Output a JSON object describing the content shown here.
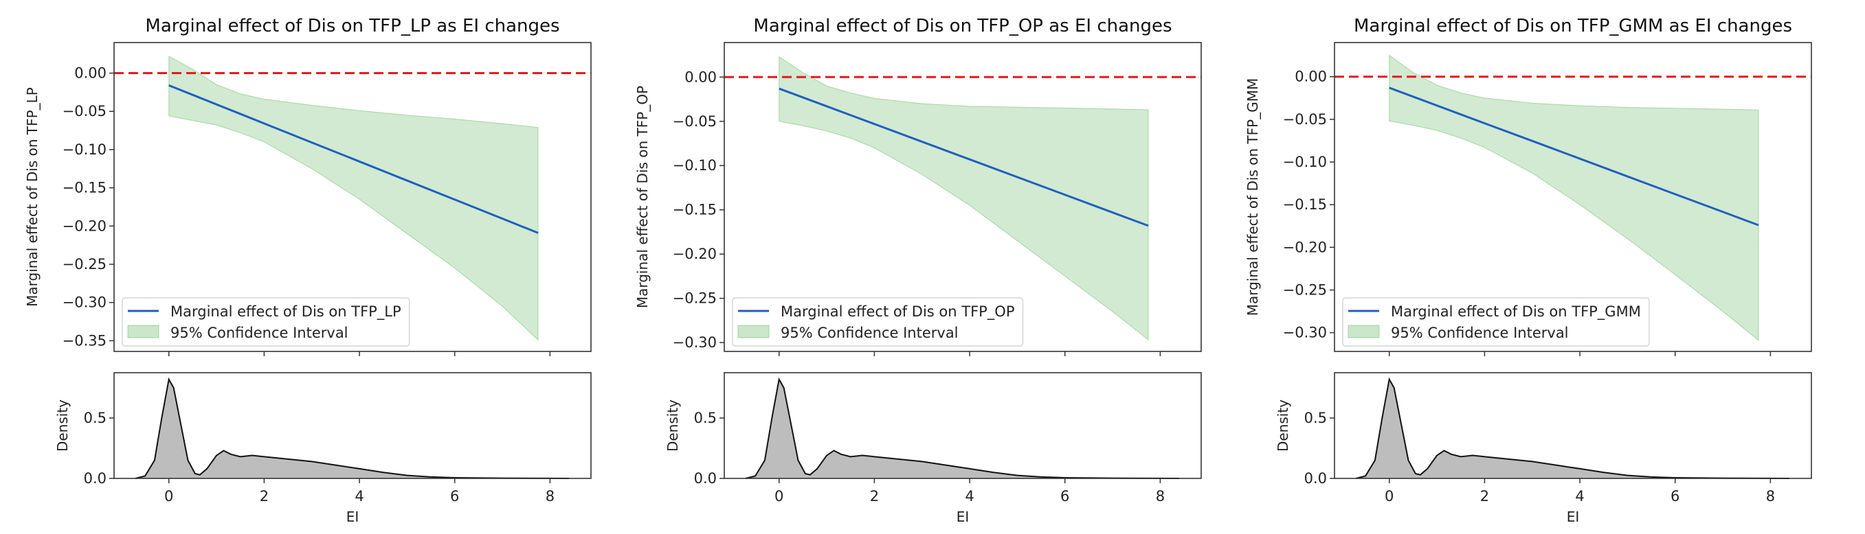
{
  "chart_data": [
    {
      "type": "line",
      "title": "Marginal effect of Dis on TFP_LP as EI changes",
      "xlabel": "EI",
      "ylabel": "Marginal effect of Dis on TFP_LP",
      "xlim": [
        -1.15,
        8.86
      ],
      "ylim": [
        -0.364,
        0.04
      ],
      "yticks": [
        "0.00",
        "−0.05",
        "−0.10",
        "−0.15",
        "−0.20",
        "−0.25",
        "−0.30",
        "−0.35"
      ],
      "ytick_values": [
        0,
        -0.05,
        -0.1,
        -0.15,
        -0.2,
        -0.25,
        -0.3,
        -0.35
      ],
      "reference_line": {
        "y": 0,
        "style": "dashed",
        "color": "#e41a1c"
      },
      "x": [
        0,
        0.5,
        1,
        1.5,
        2,
        3,
        4,
        5,
        6,
        7,
        7.75
      ],
      "series": [
        {
          "name": "Marginal effect of Dis on TFP_LP",
          "color": "#1f5fbf",
          "values": [
            -0.016,
            -0.0284,
            -0.0409,
            -0.0533,
            -0.0658,
            -0.0907,
            -0.1156,
            -0.1405,
            -0.1654,
            -0.1903,
            -0.209
          ]
        },
        {
          "name": "95% Confidence Interval",
          "type": "band",
          "color": "#2ca02c",
          "upper": [
            0.022,
            0.005,
            -0.015,
            -0.027,
            -0.034,
            -0.042,
            -0.049,
            -0.055,
            -0.06,
            -0.066,
            -0.071
          ],
          "lower": [
            -0.056,
            -0.062,
            -0.068,
            -0.078,
            -0.09,
            -0.125,
            -0.165,
            -0.21,
            -0.255,
            -0.305,
            -0.349
          ]
        }
      ],
      "legend": "lower-left",
      "density": {
        "ylabel": "Density",
        "ylim": [
          0,
          0.875
        ],
        "yticks": [
          "0.0",
          "0.5"
        ],
        "ytick_values": [
          0,
          0.5
        ],
        "xticks": [
          "0",
          "2",
          "4",
          "6",
          "8"
        ],
        "xtick_values": [
          0,
          2,
          4,
          6,
          8
        ],
        "x": [
          -0.7,
          -0.5,
          -0.3,
          -0.15,
          0,
          0.1,
          0.25,
          0.4,
          0.55,
          0.65,
          0.8,
          1.0,
          1.15,
          1.3,
          1.5,
          1.75,
          2,
          2.5,
          3,
          3.5,
          4,
          4.5,
          5,
          5.5,
          6,
          7,
          8.4
        ],
        "values": [
          0,
          0.02,
          0.15,
          0.5,
          0.82,
          0.75,
          0.45,
          0.15,
          0.04,
          0.03,
          0.08,
          0.19,
          0.23,
          0.2,
          0.18,
          0.19,
          0.18,
          0.16,
          0.14,
          0.11,
          0.08,
          0.05,
          0.025,
          0.012,
          0.006,
          0.002,
          0
        ]
      }
    },
    {
      "type": "line",
      "title": "Marginal effect of Dis on TFP_OP as EI changes",
      "xlabel": "EI",
      "ylabel": "Marginal effect of Dis on TFP_OP",
      "xlim": [
        -1.15,
        8.86
      ],
      "ylim": [
        -0.31,
        0.039
      ],
      "yticks": [
        "0.00",
        "−0.05",
        "−0.10",
        "−0.15",
        "−0.20",
        "−0.25",
        "−0.30"
      ],
      "ytick_values": [
        0,
        -0.05,
        -0.1,
        -0.15,
        -0.2,
        -0.25,
        -0.3
      ],
      "reference_line": {
        "y": 0,
        "style": "dashed",
        "color": "#e41a1c"
      },
      "x": [
        0,
        0.5,
        1,
        1.5,
        2,
        3,
        4,
        5,
        6,
        7,
        7.75
      ],
      "series": [
        {
          "name": "Marginal effect of Dis on TFP_OP",
          "color": "#1f5fbf",
          "values": [
            -0.013,
            -0.023,
            -0.033,
            -0.043,
            -0.053,
            -0.073,
            -0.093,
            -0.113,
            -0.133,
            -0.153,
            -0.168
          ]
        },
        {
          "name": "95% Confidence Interval",
          "type": "band",
          "color": "#2ca02c",
          "upper": [
            0.023,
            0.005,
            -0.01,
            -0.018,
            -0.024,
            -0.03,
            -0.033,
            -0.034,
            -0.035,
            -0.036,
            -0.037
          ],
          "lower": [
            -0.05,
            -0.055,
            -0.061,
            -0.069,
            -0.08,
            -0.11,
            -0.145,
            -0.185,
            -0.225,
            -0.265,
            -0.297
          ]
        }
      ],
      "legend": "lower-left",
      "density": {
        "ylabel": "Density",
        "ylim": [
          0,
          0.875
        ],
        "yticks": [
          "0.0",
          "0.5"
        ],
        "ytick_values": [
          0,
          0.5
        ],
        "xticks": [
          "0",
          "2",
          "4",
          "6",
          "8"
        ],
        "xtick_values": [
          0,
          2,
          4,
          6,
          8
        ],
        "x": [
          -0.7,
          -0.5,
          -0.3,
          -0.15,
          0,
          0.1,
          0.25,
          0.4,
          0.55,
          0.65,
          0.8,
          1.0,
          1.15,
          1.3,
          1.5,
          1.75,
          2,
          2.5,
          3,
          3.5,
          4,
          4.5,
          5,
          5.5,
          6,
          7,
          8.4
        ],
        "values": [
          0,
          0.02,
          0.15,
          0.5,
          0.82,
          0.75,
          0.45,
          0.15,
          0.04,
          0.03,
          0.08,
          0.19,
          0.23,
          0.2,
          0.18,
          0.19,
          0.18,
          0.16,
          0.14,
          0.11,
          0.08,
          0.05,
          0.025,
          0.012,
          0.006,
          0.002,
          0
        ]
      }
    },
    {
      "type": "line",
      "title": "Marginal effect of Dis on TFP_GMM as EI changes",
      "xlabel": "EI",
      "ylabel": "Marginal effect of Dis on TFP_GMM",
      "xlim": [
        -1.15,
        8.86
      ],
      "ylim": [
        -0.322,
        0.04
      ],
      "yticks": [
        "0.00",
        "−0.05",
        "−0.10",
        "−0.15",
        "−0.20",
        "−0.25",
        "−0.30"
      ],
      "ytick_values": [
        0,
        -0.05,
        -0.1,
        -0.15,
        -0.2,
        -0.25,
        -0.3
      ],
      "reference_line": {
        "y": 0,
        "style": "dashed",
        "color": "#e41a1c"
      },
      "x": [
        0,
        0.5,
        1,
        1.5,
        2,
        3,
        4,
        5,
        6,
        7,
        7.75
      ],
      "series": [
        {
          "name": "Marginal effect of Dis on TFP_GMM",
          "color": "#1f5fbf",
          "values": [
            -0.013,
            -0.0234,
            -0.0338,
            -0.0442,
            -0.0546,
            -0.0753,
            -0.0961,
            -0.1169,
            -0.1377,
            -0.1584,
            -0.174
          ]
        },
        {
          "name": "95% Confidence Interval",
          "type": "band",
          "color": "#2ca02c",
          "upper": [
            0.025,
            0.005,
            -0.01,
            -0.019,
            -0.025,
            -0.031,
            -0.034,
            -0.036,
            -0.037,
            -0.038,
            -0.039
          ],
          "lower": [
            -0.052,
            -0.057,
            -0.063,
            -0.072,
            -0.083,
            -0.113,
            -0.15,
            -0.19,
            -0.232,
            -0.275,
            -0.309
          ]
        }
      ],
      "legend": "lower-left",
      "density": {
        "ylabel": "Density",
        "ylim": [
          0,
          0.875
        ],
        "yticks": [
          "0.0",
          "0.5"
        ],
        "ytick_values": [
          0,
          0.5
        ],
        "xticks": [
          "0",
          "2",
          "4",
          "6",
          "8"
        ],
        "xtick_values": [
          0,
          2,
          4,
          6,
          8
        ],
        "x": [
          -0.7,
          -0.5,
          -0.3,
          -0.15,
          0,
          0.1,
          0.25,
          0.4,
          0.55,
          0.65,
          0.8,
          1.0,
          1.15,
          1.3,
          1.5,
          1.75,
          2,
          2.5,
          3,
          3.5,
          4,
          4.5,
          5,
          5.5,
          6,
          7,
          8.4
        ],
        "values": [
          0,
          0.02,
          0.15,
          0.5,
          0.82,
          0.75,
          0.45,
          0.15,
          0.04,
          0.03,
          0.08,
          0.19,
          0.23,
          0.2,
          0.18,
          0.19,
          0.18,
          0.16,
          0.14,
          0.11,
          0.08,
          0.05,
          0.025,
          0.012,
          0.006,
          0.002,
          0
        ]
      }
    }
  ]
}
